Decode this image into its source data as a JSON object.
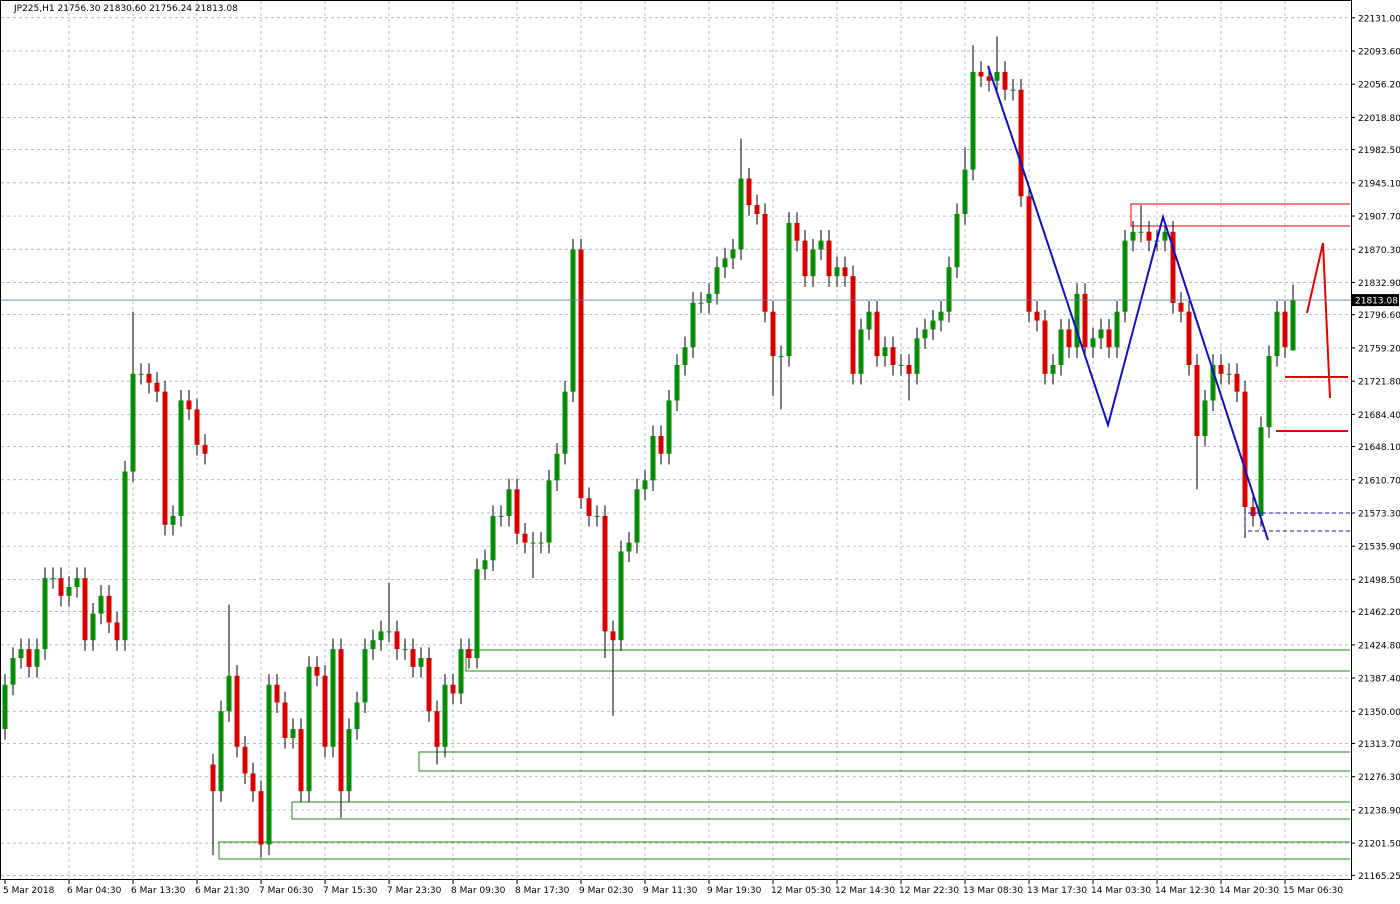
{
  "chart_data": {
    "type": "candlestick",
    "title": "JP225,H1  21756.30 21830.60 21756.24 21813.08",
    "up_color": "#0a8a0a",
    "down_color": "#d40000",
    "wick_color": "#000000",
    "grid": true,
    "ylim": [
      21160,
      22151
    ],
    "yticks": [
      {
        "value": 22131,
        "label": "22131.00"
      },
      {
        "value": 22093.6,
        "label": "22093.60"
      },
      {
        "value": 22056.2,
        "label": "22056.20"
      },
      {
        "value": 22018.8,
        "label": "22018.80"
      },
      {
        "value": 21982.5,
        "label": "21982.50"
      },
      {
        "value": 21945.1,
        "label": "21945.10"
      },
      {
        "value": 21907.7,
        "label": "21907.70"
      },
      {
        "value": 21870.3,
        "label": "21870.30"
      },
      {
        "value": 21832.9,
        "label": "21832.90"
      },
      {
        "value": 21796.6,
        "label": "21796.60"
      },
      {
        "value": 21759.2,
        "label": "21759.20"
      },
      {
        "value": 21721.8,
        "label": "21721.80"
      },
      {
        "value": 21684.4,
        "label": "21684.40"
      },
      {
        "value": 21648.1,
        "label": "21648.10"
      },
      {
        "value": 21610.7,
        "label": "21610.70"
      },
      {
        "value": 21573.3,
        "label": "21573.30"
      },
      {
        "value": 21535.9,
        "label": "21535.90"
      },
      {
        "value": 21498.5,
        "label": "21498.50"
      },
      {
        "value": 21462.2,
        "label": "21462.20"
      },
      {
        "value": 21424.8,
        "label": "21424.80"
      },
      {
        "value": 21387.4,
        "label": "21387.40"
      },
      {
        "value": 21350,
        "label": "21350.00"
      },
      {
        "value": 21313.7,
        "label": "21313.70"
      },
      {
        "value": 21276.3,
        "label": "21276.30"
      },
      {
        "value": 21238.9,
        "label": "21238.90"
      },
      {
        "value": 21201.5,
        "label": "21201.50"
      },
      {
        "value": 21165.25,
        "label": "21165.25"
      }
    ],
    "categories": [
      "5 Mar 2018",
      null,
      null,
      null,
      null,
      null,
      null,
      null,
      "6 Mar 04:30",
      null,
      null,
      null,
      null,
      null,
      null,
      null,
      "6 Mar 13:30",
      null,
      null,
      null,
      null,
      null,
      null,
      null,
      "6 Mar 21:30",
      null,
      null,
      null,
      null,
      null,
      null,
      null,
      "7 Mar 06:30",
      null,
      null,
      null,
      null,
      null,
      null,
      null,
      "7 Mar 15:30",
      null,
      null,
      null,
      null,
      null,
      null,
      null,
      "7 Mar 23:30",
      null,
      null,
      null,
      null,
      null,
      null,
      null,
      "8 Mar 09:30",
      null,
      null,
      null,
      null,
      null,
      null,
      null,
      "8 Mar 17:30",
      null,
      null,
      null,
      null,
      null,
      null,
      null,
      "9 Mar 02:30",
      null,
      null,
      null,
      null,
      null,
      null,
      null,
      "9 Mar 11:30",
      null,
      null,
      null,
      null,
      null,
      null,
      null,
      "9 Mar 19:30",
      null,
      null,
      null,
      null,
      null,
      null,
      null,
      "12 Mar 05:30",
      null,
      null,
      null,
      null,
      null,
      null,
      null,
      "12 Mar 14:30",
      null,
      null,
      null,
      null,
      null,
      null,
      null,
      "12 Mar 22:30",
      null,
      null,
      null,
      null,
      null,
      null,
      null,
      "13 Mar 08:30",
      null,
      null,
      null,
      null,
      null,
      null,
      null,
      "13 Mar 17:30",
      null,
      null,
      null,
      null,
      null,
      null,
      null,
      "14 Mar 03:30",
      null,
      null,
      null,
      null,
      null,
      null,
      null,
      "14 Mar 12:30",
      null,
      null,
      null,
      null,
      null,
      null,
      null,
      "14 Mar 20:30",
      null,
      null,
      null,
      null,
      null,
      null,
      null,
      "15 Mar 06:30",
      null
    ],
    "candles": [
      [
        21330,
        21392,
        21318,
        21380
      ],
      [
        21380,
        21422,
        21368,
        21410
      ],
      [
        21410,
        21432,
        21398,
        21420
      ],
      [
        21420,
        21432,
        21388,
        21400
      ],
      [
        21400,
        21432,
        21388,
        21420
      ],
      [
        21420,
        21512,
        21408,
        21500
      ],
      [
        21500,
        21512,
        21488,
        21500
      ],
      [
        21500,
        21512,
        21468,
        21480
      ],
      [
        21480,
        21502,
        21468,
        21490
      ],
      [
        21490,
        21512,
        21478,
        21500
      ],
      [
        21500,
        21512,
        21418,
        21430
      ],
      [
        21430,
        21472,
        21418,
        21460
      ],
      [
        21460,
        21492,
        21448,
        21480
      ],
      [
        21480,
        21492,
        21438,
        21450
      ],
      [
        21450,
        21462,
        21418,
        21430
      ],
      [
        21430,
        21632,
        21418,
        21620
      ],
      [
        21620,
        21800,
        21608,
        21730
      ],
      [
        21730,
        21742,
        21718,
        21730
      ],
      [
        21730,
        21742,
        21708,
        21720
      ],
      [
        21720,
        21732,
        21698,
        21710
      ],
      [
        21710,
        21722,
        21548,
        21560
      ],
      [
        21560,
        21582,
        21548,
        21570
      ],
      [
        21570,
        21712,
        21558,
        21700
      ],
      [
        21700,
        21712,
        21678,
        21690
      ],
      [
        21690,
        21702,
        21638,
        21650
      ],
      [
        21650,
        21662,
        21628,
        21640
      ],
      [
        21290,
        21302,
        21188,
        21260
      ],
      [
        21260,
        21362,
        21248,
        21350
      ],
      [
        21350,
        21470,
        21338,
        21390
      ],
      [
        21390,
        21402,
        21298,
        21310
      ],
      [
        21310,
        21322,
        21268,
        21280
      ],
      [
        21280,
        21292,
        21248,
        21260
      ],
      [
        21260,
        21272,
        21185,
        21200
      ],
      [
        21200,
        21392,
        21188,
        21380
      ],
      [
        21380,
        21392,
        21348,
        21360
      ],
      [
        21360,
        21372,
        21308,
        21320
      ],
      [
        21320,
        21342,
        21308,
        21330
      ],
      [
        21330,
        21342,
        21248,
        21260
      ],
      [
        21260,
        21412,
        21248,
        21400
      ],
      [
        21400,
        21412,
        21378,
        21390
      ],
      [
        21390,
        21402,
        21298,
        21310
      ],
      [
        21310,
        21432,
        21298,
        21420
      ],
      [
        21420,
        21432,
        21230,
        21260
      ],
      [
        21260,
        21342,
        21248,
        21330
      ],
      [
        21330,
        21372,
        21318,
        21360
      ],
      [
        21360,
        21432,
        21348,
        21420
      ],
      [
        21420,
        21442,
        21408,
        21430
      ],
      [
        21430,
        21452,
        21418,
        21440
      ],
      [
        21440,
        21495,
        21428,
        21440
      ],
      [
        21440,
        21452,
        21408,
        21420
      ],
      [
        21420,
        21432,
        21408,
        21420
      ],
      [
        21420,
        21432,
        21388,
        21400
      ],
      [
        21400,
        21422,
        21388,
        21410
      ],
      [
        21410,
        21422,
        21338,
        21350
      ],
      [
        21350,
        21362,
        21290,
        21310
      ],
      [
        21310,
        21392,
        21298,
        21380
      ],
      [
        21380,
        21392,
        21358,
        21370
      ],
      [
        21370,
        21432,
        21358,
        21420
      ],
      [
        21420,
        21432,
        21398,
        21410
      ],
      [
        21410,
        21522,
        21398,
        21510
      ],
      [
        21510,
        21532,
        21498,
        21520
      ],
      [
        21520,
        21582,
        21508,
        21570
      ],
      [
        21570,
        21582,
        21558,
        21570
      ],
      [
        21570,
        21612,
        21558,
        21600
      ],
      [
        21600,
        21612,
        21538,
        21550
      ],
      [
        21550,
        21562,
        21528,
        21540
      ],
      [
        21540,
        21552,
        21500,
        21540
      ],
      [
        21540,
        21552,
        21528,
        21540
      ],
      [
        21540,
        21622,
        21528,
        21610
      ],
      [
        21610,
        21652,
        21598,
        21640
      ],
      [
        21640,
        21722,
        21628,
        21710
      ],
      [
        21710,
        21882,
        21698,
        21870
      ],
      [
        21870,
        21882,
        21578,
        21590
      ],
      [
        21590,
        21602,
        21558,
        21570
      ],
      [
        21570,
        21582,
        21558,
        21570
      ],
      [
        21570,
        21582,
        21410,
        21440
      ],
      [
        21440,
        21452,
        21345,
        21430
      ],
      [
        21430,
        21542,
        21418,
        21530
      ],
      [
        21530,
        21552,
        21518,
        21540
      ],
      [
        21540,
        21612,
        21528,
        21600
      ],
      [
        21600,
        21622,
        21588,
        21610
      ],
      [
        21610,
        21672,
        21598,
        21660
      ],
      [
        21660,
        21672,
        21628,
        21640
      ],
      [
        21640,
        21712,
        21628,
        21700
      ],
      [
        21700,
        21752,
        21688,
        21740
      ],
      [
        21740,
        21772,
        21728,
        21760
      ],
      [
        21760,
        21822,
        21748,
        21810
      ],
      [
        21810,
        21822,
        21798,
        21810
      ],
      [
        21810,
        21832,
        21798,
        21820
      ],
      [
        21820,
        21862,
        21808,
        21850
      ],
      [
        21850,
        21872,
        21838,
        21860
      ],
      [
        21860,
        21882,
        21848,
        21870
      ],
      [
        21870,
        21995,
        21858,
        21950
      ],
      [
        21950,
        21962,
        21908,
        21920
      ],
      [
        21920,
        21932,
        21898,
        21910
      ],
      [
        21910,
        21922,
        21788,
        21800
      ],
      [
        21800,
        21812,
        21705,
        21750
      ],
      [
        21750,
        21762,
        21690,
        21750
      ],
      [
        21750,
        21912,
        21738,
        21900
      ],
      [
        21900,
        21912,
        21868,
        21880
      ],
      [
        21880,
        21892,
        21828,
        21840
      ],
      [
        21840,
        21882,
        21828,
        21870
      ],
      [
        21870,
        21892,
        21858,
        21880
      ],
      [
        21880,
        21892,
        21828,
        21840
      ],
      [
        21840,
        21862,
        21828,
        21850
      ],
      [
        21850,
        21862,
        21828,
        21840
      ],
      [
        21840,
        21852,
        21718,
        21730
      ],
      [
        21730,
        21792,
        21718,
        21780
      ],
      [
        21780,
        21812,
        21768,
        21800
      ],
      [
        21800,
        21812,
        21738,
        21750
      ],
      [
        21750,
        21772,
        21738,
        21760
      ],
      [
        21760,
        21772,
        21728,
        21740
      ],
      [
        21740,
        21752,
        21728,
        21740
      ],
      [
        21740,
        21752,
        21700,
        21730
      ],
      [
        21730,
        21782,
        21718,
        21770
      ],
      [
        21770,
        21792,
        21758,
        21780
      ],
      [
        21780,
        21802,
        21768,
        21790
      ],
      [
        21790,
        21812,
        21778,
        21800
      ],
      [
        21800,
        21862,
        21788,
        21850
      ],
      [
        21850,
        21922,
        21838,
        21910
      ],
      [
        21910,
        21985,
        21898,
        21960
      ],
      [
        21960,
        22100,
        21948,
        22070
      ],
      [
        22070,
        22082,
        22053,
        22065
      ],
      [
        22065,
        22077,
        22048,
        22060
      ],
      [
        22060,
        22110,
        22048,
        22070
      ],
      [
        22070,
        22082,
        22038,
        22050
      ],
      [
        22050,
        22062,
        22038,
        22050
      ],
      [
        22050,
        22062,
        21918,
        21930
      ],
      [
        21930,
        21942,
        21788,
        21800
      ],
      [
        21800,
        21812,
        21778,
        21790
      ],
      [
        21790,
        21802,
        21718,
        21730
      ],
      [
        21730,
        21752,
        21718,
        21740
      ],
      [
        21740,
        21792,
        21728,
        21780
      ],
      [
        21780,
        21792,
        21748,
        21760
      ],
      [
        21760,
        21832,
        21748,
        21820
      ],
      [
        21820,
        21832,
        21748,
        21760
      ],
      [
        21760,
        21782,
        21748,
        21770
      ],
      [
        21770,
        21792,
        21758,
        21780
      ],
      [
        21780,
        21792,
        21748,
        21760
      ],
      [
        21760,
        21812,
        21748,
        21800
      ],
      [
        21800,
        21892,
        21788,
        21880
      ],
      [
        21880,
        21902,
        21868,
        21890
      ],
      [
        21890,
        21920,
        21878,
        21890
      ],
      [
        21890,
        21902,
        21868,
        21880
      ],
      [
        21880,
        21892,
        21868,
        21880
      ],
      [
        21880,
        21902,
        21868,
        21890
      ],
      [
        21890,
        21902,
        21798,
        21810
      ],
      [
        21810,
        21822,
        21788,
        21800
      ],
      [
        21800,
        21812,
        21728,
        21740
      ],
      [
        21740,
        21752,
        21600,
        21660
      ],
      [
        21660,
        21712,
        21648,
        21700
      ],
      [
        21700,
        21752,
        21688,
        21740
      ],
      [
        21740,
        21752,
        21718,
        21730
      ],
      [
        21730,
        21742,
        21718,
        21730
      ],
      [
        21730,
        21742,
        21698,
        21710
      ],
      [
        21710,
        21722,
        21545,
        21580
      ],
      [
        21580,
        21592,
        21558,
        21570
      ],
      [
        21570,
        21682,
        21558,
        21670
      ],
      [
        21670,
        21762,
        21658,
        21750
      ],
      [
        21750,
        21812,
        21738,
        21800
      ],
      [
        21800,
        21812,
        21748,
        21760
      ],
      [
        21756.3,
        21830.6,
        21756.24,
        21813.08
      ]
    ]
  }
}
